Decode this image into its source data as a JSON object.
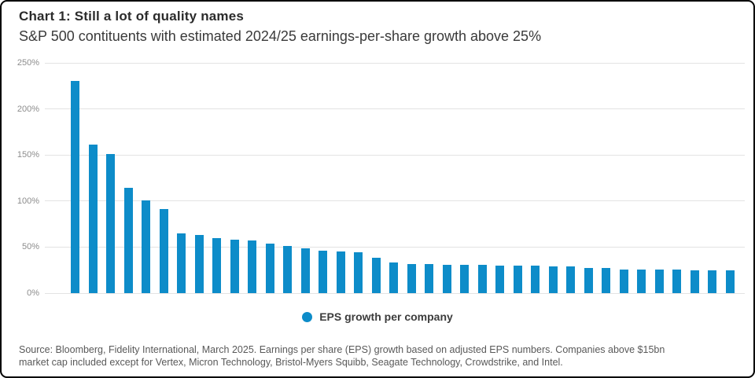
{
  "header": {
    "title": "Chart 1: Still a lot of quality names",
    "subtitle": "S&P 500 contituents with estimated 2024/25 earnings-per-share growth above 25%"
  },
  "chart_data": {
    "type": "bar",
    "title": "Chart 1: Still a lot of quality names",
    "subtitle": "S&P 500 contituents with estimated 2024/25 earnings-per-share growth above 25%",
    "series": [
      {
        "name": "EPS growth per company",
        "values": [
          230,
          161,
          151,
          114,
          101,
          91,
          65,
          63,
          60,
          58,
          57,
          54,
          51,
          49,
          46,
          45,
          44,
          38,
          33,
          32,
          32,
          31,
          31,
          31,
          30,
          30,
          30,
          29,
          29,
          27,
          27,
          26,
          26,
          26,
          26,
          25,
          25,
          25
        ]
      }
    ],
    "unit": "%",
    "xlabel": "",
    "ylabel": "",
    "ylim": [
      0,
      250
    ],
    "ytick_labels": [
      "0%",
      "50%",
      "100%",
      "150%",
      "200%",
      "250%"
    ],
    "grid": true,
    "bar_color": "#0d8cc9",
    "legend_position": "bottom-center"
  },
  "legend": {
    "label": "EPS growth per company",
    "dot_color": "#0d8cc9"
  },
  "footer": {
    "source_line1": "Source: Bloomberg, Fidelity International, March 2025. Earnings per share (EPS) growth based on adjusted EPS numbers. Companies above $15bn",
    "source_line2": "market cap included except for Vertex, Micron Technology, Bristol-Myers Squibb, Seagate Technology, Crowdstrike, and Intel."
  },
  "colors": {
    "title_text": "#2b2b2b",
    "axis_text": "#8c8c8c",
    "gridline": "#e3e3e3",
    "source_text": "#595959"
  }
}
